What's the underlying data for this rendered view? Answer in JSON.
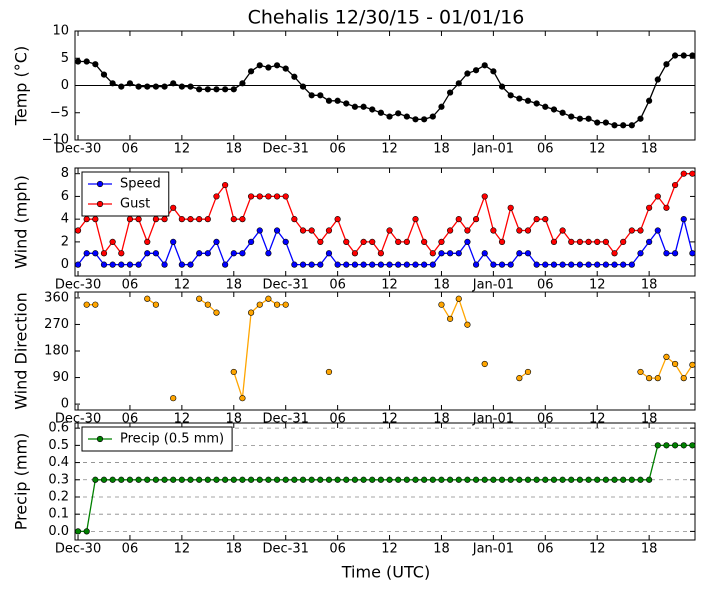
{
  "chart_data": [
    {
      "type": "line",
      "title": "Chehalis 12/30/15 - 01/01/16",
      "ylabel": "Temp (°C)",
      "color": "#000000",
      "axhline": 0,
      "x": [
        0,
        1,
        2,
        3,
        4,
        5,
        6,
        7,
        8,
        9,
        10,
        11,
        12,
        13,
        14,
        15,
        16,
        17,
        18,
        19,
        20,
        21,
        22,
        23,
        24,
        25,
        26,
        27,
        28,
        29,
        30,
        31,
        32,
        33,
        34,
        35,
        36,
        37,
        38,
        39,
        40,
        41,
        42,
        43,
        44,
        45,
        46,
        47,
        48,
        49,
        50,
        51,
        52,
        53,
        54,
        55,
        56,
        57,
        58,
        59,
        60,
        61,
        62,
        63,
        64,
        65,
        66,
        67,
        68,
        69,
        70,
        71
      ],
      "values": [
        4.4,
        4.4,
        3.9,
        2.0,
        0.4,
        -0.2,
        0.4,
        -0.2,
        -0.2,
        -0.2,
        -0.2,
        0.4,
        -0.2,
        -0.2,
        -0.7,
        -0.7,
        -0.7,
        -0.7,
        -0.7,
        0.4,
        2.6,
        3.7,
        3.3,
        3.7,
        3.1,
        1.6,
        -0.2,
        -1.8,
        -1.8,
        -2.8,
        -2.8,
        -3.3,
        -3.9,
        -3.9,
        -4.4,
        -5.0,
        -5.7,
        -5.1,
        -5.7,
        -6.2,
        -6.2,
        -5.7,
        -3.9,
        -1.3,
        0.4,
        2.2,
        2.8,
        3.7,
        2.6,
        -0.2,
        -1.8,
        -2.4,
        -2.8,
        -3.3,
        -3.9,
        -4.4,
        -5.0,
        -5.7,
        -6.1,
        -6.1,
        -6.8,
        -6.8,
        -7.3,
        -7.3,
        -7.3,
        -6.1,
        -2.8,
        1.1,
        3.9,
        5.5,
        5.5,
        5.5
      ],
      "xlim": [
        -0.35,
        71.3
      ],
      "xticks": [
        {
          "value": 0,
          "label": "Dec-30"
        },
        {
          "value": 6,
          "label": "06"
        },
        12,
        18,
        {
          "value": 24,
          "label": "Dec-31"
        },
        {
          "value": 30,
          "label": "06"
        },
        {
          "value": 36,
          "label": "12"
        },
        {
          "value": 42,
          "label": "18"
        },
        {
          "value": 48,
          "label": "Jan-01"
        },
        {
          "value": 54,
          "label": "06"
        },
        {
          "value": 60,
          "label": "12"
        },
        {
          "value": 66,
          "label": "18"
        }
      ],
      "ylim": [
        -10,
        10
      ],
      "yticks": [
        {
          "value": -10,
          "label": "−10"
        },
        {
          "value": -5,
          "label": "−5"
        },
        0,
        5,
        10
      ]
    },
    {
      "type": "line",
      "ylabel": "Wind (mph)",
      "legend": "upper left",
      "x": [
        0,
        1,
        2,
        3,
        4,
        5,
        6,
        7,
        8,
        9,
        10,
        11,
        12,
        13,
        14,
        15,
        16,
        17,
        18,
        19,
        20,
        21,
        22,
        23,
        24,
        25,
        26,
        27,
        28,
        29,
        30,
        31,
        32,
        33,
        34,
        35,
        36,
        37,
        38,
        39,
        40,
        41,
        42,
        43,
        44,
        45,
        46,
        47,
        48,
        49,
        50,
        51,
        52,
        53,
        54,
        55,
        56,
        57,
        58,
        59,
        60,
        61,
        62,
        63,
        64,
        65,
        66,
        67,
        68,
        69,
        70,
        71
      ],
      "series": [
        {
          "name": "Speed",
          "color": "#0000ff",
          "values": [
            0,
            1,
            1,
            0,
            0,
            0,
            0,
            0,
            1,
            1,
            0,
            2,
            0,
            0,
            1,
            1,
            2,
            0,
            1,
            1,
            2,
            3,
            1,
            3,
            2,
            0,
            0,
            0,
            0,
            1,
            0,
            0,
            0,
            0,
            0,
            0,
            0,
            0,
            0,
            0,
            0,
            0,
            1,
            1,
            1,
            2,
            0,
            1,
            0,
            0,
            0,
            1,
            1,
            0,
            0,
            0,
            0,
            0,
            0,
            0,
            0,
            0,
            0,
            0,
            0,
            1,
            2,
            3,
            1,
            1,
            4,
            1
          ]
        },
        {
          "name": "Gust",
          "color": "#ff0000",
          "values": [
            3,
            4,
            4,
            1,
            2,
            1,
            4,
            4,
            2,
            4,
            4,
            5,
            4,
            4,
            4,
            4,
            6,
            7,
            4,
            4,
            6,
            6,
            6,
            6,
            6,
            4,
            3,
            3,
            2,
            3,
            4,
            2,
            1,
            2,
            2,
            1,
            3,
            2,
            2,
            4,
            2,
            1,
            2,
            3,
            4,
            3,
            4,
            6,
            3,
            2,
            5,
            3,
            3,
            4,
            4,
            2,
            3,
            2,
            2,
            2,
            2,
            2,
            1,
            2,
            3,
            3,
            5,
            6,
            5,
            7,
            8,
            8
          ]
        }
      ],
      "xlim": [
        -0.35,
        71.3
      ],
      "xticks": [
        {
          "value": 0,
          "label": "Dec-30"
        },
        {
          "value": 6,
          "label": "06"
        },
        12,
        18,
        {
          "value": 24,
          "label": "Dec-31"
        },
        {
          "value": 30,
          "label": "06"
        },
        {
          "value": 36,
          "label": "12"
        },
        {
          "value": 42,
          "label": "18"
        },
        {
          "value": 48,
          "label": "Jan-01"
        },
        {
          "value": 54,
          "label": "06"
        },
        {
          "value": 60,
          "label": "12"
        },
        {
          "value": 66,
          "label": "18"
        }
      ],
      "ylim": [
        -1,
        8.5
      ],
      "yticks": [
        0,
        2,
        4,
        6,
        8
      ]
    },
    {
      "type": "line",
      "ylabel": "Wind Direction",
      "color": "#ffa500",
      "x": [
        0,
        1,
        2,
        3,
        4,
        5,
        6,
        7,
        8,
        9,
        10,
        11,
        12,
        13,
        14,
        15,
        16,
        17,
        18,
        19,
        20,
        21,
        22,
        23,
        24,
        25,
        26,
        27,
        28,
        29,
        30,
        31,
        32,
        33,
        34,
        35,
        36,
        37,
        38,
        39,
        40,
        41,
        42,
        43,
        44,
        45,
        46,
        47,
        48,
        49,
        50,
        51,
        52,
        53,
        54,
        55,
        56,
        57,
        58,
        59,
        60,
        61,
        62,
        63,
        64,
        65,
        66,
        67,
        68,
        69,
        70,
        71
      ],
      "values": [
        null,
        337,
        337,
        null,
        null,
        null,
        null,
        null,
        357,
        337,
        null,
        20,
        null,
        null,
        357,
        337,
        310,
        null,
        109,
        20,
        310,
        337,
        357,
        337,
        337,
        null,
        null,
        null,
        null,
        109,
        null,
        null,
        null,
        null,
        null,
        null,
        null,
        null,
        null,
        null,
        null,
        null,
        337,
        289,
        357,
        269,
        null,
        136,
        null,
        null,
        null,
        88,
        109,
        null,
        null,
        null,
        null,
        null,
        null,
        null,
        null,
        null,
        null,
        null,
        null,
        109,
        88,
        88,
        160,
        136,
        88,
        133
      ],
      "xlim": [
        -0.35,
        71.3
      ],
      "xticks": [
        {
          "value": 0,
          "label": "Dec-30"
        },
        {
          "value": 6,
          "label": "06"
        },
        12,
        18,
        {
          "value": 24,
          "label": "Dec-31"
        },
        {
          "value": 30,
          "label": "06"
        },
        {
          "value": 36,
          "label": "12"
        },
        {
          "value": 42,
          "label": "18"
        },
        {
          "value": 48,
          "label": "Jan-01"
        },
        {
          "value": 54,
          "label": "06"
        },
        {
          "value": 60,
          "label": "12"
        },
        {
          "value": 66,
          "label": "18"
        }
      ],
      "ylim": [
        -20,
        380
      ],
      "yticks": [
        0,
        90,
        180,
        270,
        360
      ]
    },
    {
      "type": "line",
      "ylabel": "Precip (mm)",
      "xlabel": "Time (UTC)",
      "legend": "upper left",
      "grid": true,
      "x": [
        0,
        1,
        2,
        3,
        4,
        5,
        6,
        7,
        8,
        9,
        10,
        11,
        12,
        13,
        14,
        15,
        16,
        17,
        18,
        19,
        20,
        21,
        22,
        23,
        24,
        25,
        26,
        27,
        28,
        29,
        30,
        31,
        32,
        33,
        34,
        35,
        36,
        37,
        38,
        39,
        40,
        41,
        42,
        43,
        44,
        45,
        46,
        47,
        48,
        49,
        50,
        51,
        52,
        53,
        54,
        55,
        56,
        57,
        58,
        59,
        60,
        61,
        62,
        63,
        64,
        65,
        66,
        67,
        68,
        69,
        70,
        71
      ],
      "series": [
        {
          "name": "Precip (0.5 mm)",
          "color": "#008000",
          "values": [
            0,
            0,
            0.3,
            0.3,
            0.3,
            0.3,
            0.3,
            0.3,
            0.3,
            0.3,
            0.3,
            0.3,
            0.3,
            0.3,
            0.3,
            0.3,
            0.3,
            0.3,
            0.3,
            0.3,
            0.3,
            0.3,
            0.3,
            0.3,
            0.3,
            0.3,
            0.3,
            0.3,
            0.3,
            0.3,
            0.3,
            0.3,
            0.3,
            0.3,
            0.3,
            0.3,
            0.3,
            0.3,
            0.3,
            0.3,
            0.3,
            0.3,
            0.3,
            0.3,
            0.3,
            0.3,
            0.3,
            0.3,
            0.3,
            0.3,
            0.3,
            0.3,
            0.3,
            0.3,
            0.3,
            0.3,
            0.3,
            0.3,
            0.3,
            0.3,
            0.3,
            0.3,
            0.3,
            0.3,
            0.3,
            0.3,
            0.3,
            0.5,
            0.5,
            0.5,
            0.5,
            0.5
          ]
        }
      ],
      "xlim": [
        -0.35,
        71.3
      ],
      "xticks": [
        {
          "value": 0,
          "label": "Dec-30"
        },
        {
          "value": 6,
          "label": "06"
        },
        12,
        18,
        {
          "value": 24,
          "label": "Dec-31"
        },
        {
          "value": 30,
          "label": "06"
        },
        {
          "value": 36,
          "label": "12"
        },
        {
          "value": 42,
          "label": "18"
        },
        {
          "value": 48,
          "label": "Jan-01"
        },
        {
          "value": 54,
          "label": "06"
        },
        {
          "value": 60,
          "label": "12"
        },
        {
          "value": 66,
          "label": "18"
        }
      ],
      "ylim": [
        -0.05,
        0.63
      ],
      "yticks": [
        {
          "value": 0,
          "label": "0.0"
        },
        0.1,
        0.2,
        0.3,
        0.4,
        0.5,
        0.6
      ]
    }
  ]
}
